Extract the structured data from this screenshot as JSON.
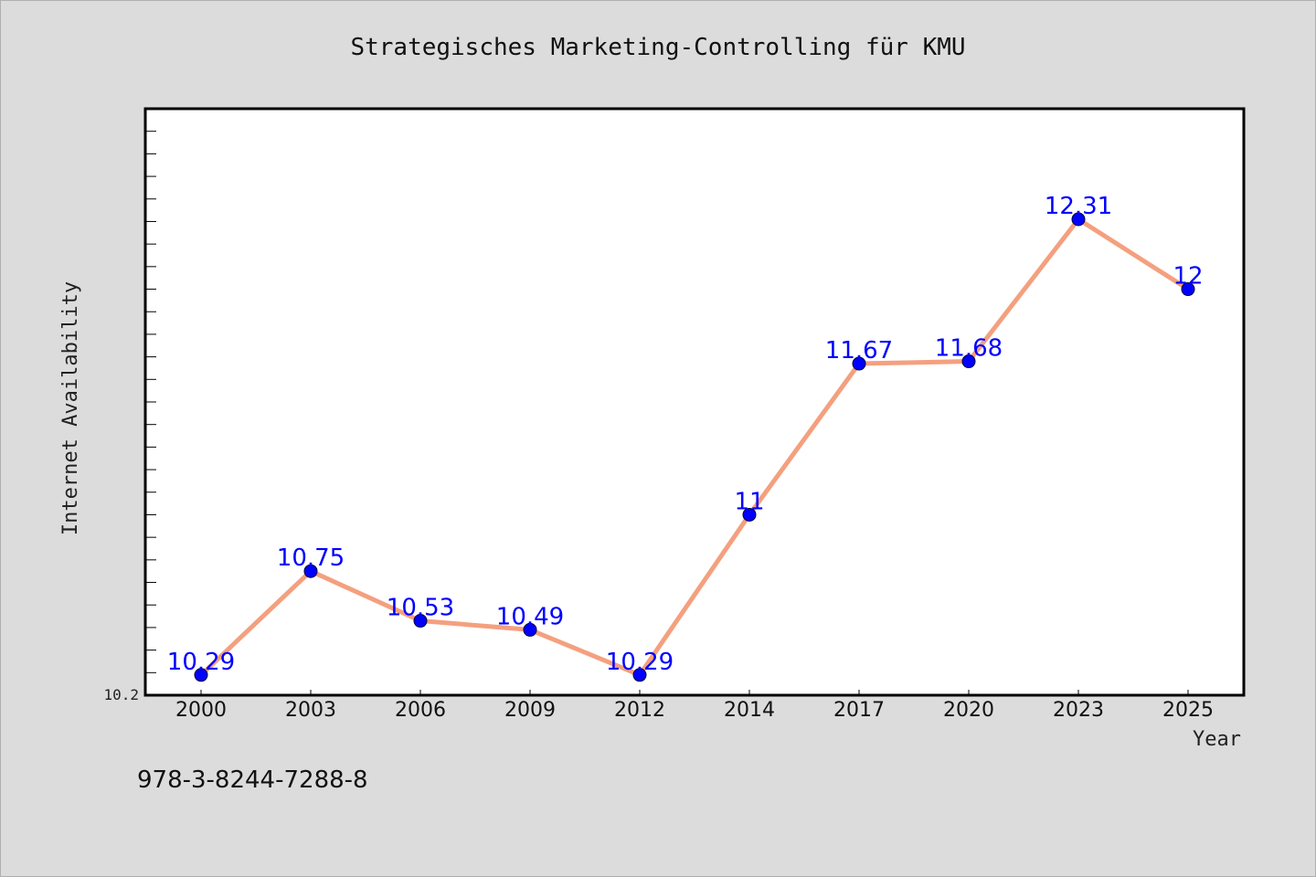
{
  "chart_data": {
    "type": "line",
    "title": "Strategisches Marketing-Controlling für KMU",
    "xlabel": "Year",
    "ylabel": "Internet Availability",
    "categories": [
      "2000",
      "2003",
      "2006",
      "2009",
      "2012",
      "2014",
      "2017",
      "2020",
      "2023",
      "2025"
    ],
    "series": [
      {
        "values": [
          10.29,
          10.75,
          10.53,
          10.49,
          10.29,
          11,
          11.67,
          11.68,
          12.31,
          12
        ],
        "labels": [
          "10.29",
          "10.75",
          "10.53",
          "10.49",
          "10.29",
          "11",
          "11.67",
          "11.68",
          "12.31",
          "12"
        ]
      }
    ],
    "y_tick_labels": [
      "10.2"
    ],
    "ylim": [
      10.2,
      12.8
    ],
    "grid": false,
    "line_color": "#f4a07f",
    "marker_color": "#0000ff"
  },
  "footer": {
    "isbn": "978-3-8244-7288-8"
  }
}
